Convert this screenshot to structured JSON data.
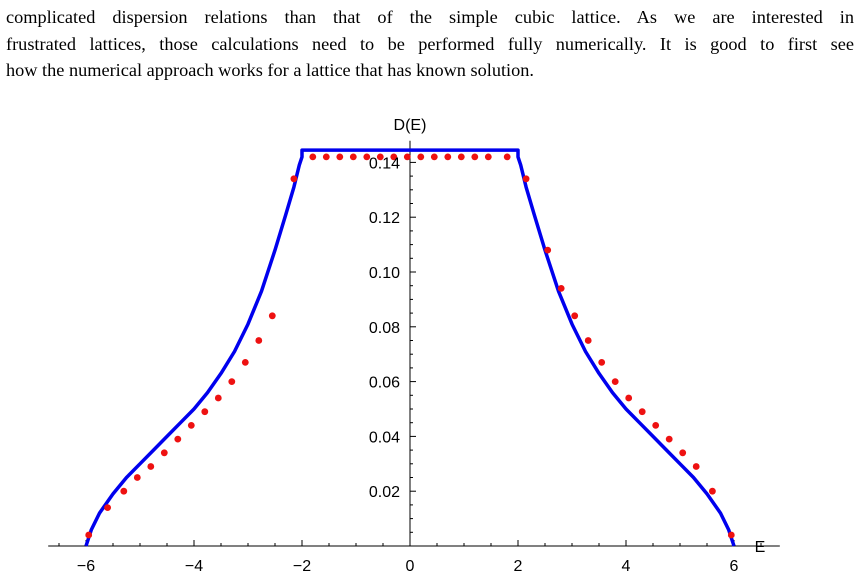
{
  "text": {
    "lines": [
      "complicated dispersion relations than that of the simple cubic lattice.  As we are interested in",
      "frustrated lattices, those calculations need to be performed fully numerically. It is good to first see",
      "how the numerical approach works for a lattice that has known solution."
    ]
  },
  "chart_data": {
    "type": "line",
    "xlabel": "E",
    "ylabel": "D(E)",
    "xlim": [
      -6.7,
      6.7
    ],
    "ylim": [
      0,
      0.145
    ],
    "x_ticks": [
      -6,
      -4,
      -2,
      0,
      2,
      4,
      6
    ],
    "x_tick_labels": [
      "−6",
      "−4",
      "−2",
      "0",
      "2",
      "4",
      "6"
    ],
    "y_ticks": [
      0.02,
      0.04,
      0.06,
      0.08,
      0.1,
      0.12,
      0.14
    ],
    "y_tick_labels": [
      "0.02",
      "0.04",
      "0.06",
      "0.08",
      "0.10",
      "0.12",
      "0.14"
    ],
    "series": [
      {
        "kind": "line",
        "color": "#0000ee",
        "x": [
          -6.0,
          -5.9,
          -5.75,
          -5.5,
          -5.25,
          -5.0,
          -4.75,
          -4.5,
          -4.25,
          -4.0,
          -3.75,
          -3.5,
          -3.25,
          -3.0,
          -2.75,
          -2.5,
          -2.3,
          -2.15,
          -2.05,
          -2.0,
          -2.0,
          2.0,
          2.0,
          2.05,
          2.15,
          2.3,
          2.5,
          2.75,
          3.0,
          3.25,
          3.5,
          3.75,
          4.0,
          4.25,
          4.5,
          4.75,
          5.0,
          5.25,
          5.5,
          5.75,
          5.9,
          6.0
        ],
        "y": [
          0.0,
          0.006,
          0.012,
          0.019,
          0.025,
          0.03,
          0.035,
          0.04,
          0.045,
          0.05,
          0.056,
          0.063,
          0.071,
          0.081,
          0.093,
          0.108,
          0.121,
          0.131,
          0.139,
          0.142,
          0.1445,
          0.1445,
          0.142,
          0.139,
          0.131,
          0.121,
          0.108,
          0.093,
          0.081,
          0.071,
          0.063,
          0.056,
          0.05,
          0.045,
          0.04,
          0.035,
          0.03,
          0.025,
          0.019,
          0.012,
          0.006,
          0.0
        ]
      },
      {
        "kind": "points",
        "color": "#ee1111",
        "x": [
          -5.95,
          -5.6,
          -5.3,
          -5.05,
          -4.8,
          -4.55,
          -4.3,
          -4.05,
          -3.8,
          -3.55,
          -3.3,
          -3.05,
          -2.8,
          -2.55,
          -2.15,
          -1.8,
          -1.55,
          -1.3,
          -1.05,
          -0.8,
          -0.55,
          -0.3,
          -0.05,
          0.2,
          0.45,
          0.7,
          0.95,
          1.2,
          1.45,
          1.8,
          2.15,
          2.55,
          2.8,
          3.05,
          3.3,
          3.55,
          3.8,
          4.05,
          4.3,
          4.55,
          4.8,
          5.05,
          5.3,
          5.6,
          5.95
        ],
        "y": [
          0.004,
          0.014,
          0.02,
          0.025,
          0.029,
          0.034,
          0.039,
          0.044,
          0.049,
          0.054,
          0.06,
          0.067,
          0.075,
          0.084,
          0.134,
          0.142,
          0.142,
          0.142,
          0.142,
          0.142,
          0.142,
          0.142,
          0.142,
          0.142,
          0.142,
          0.142,
          0.142,
          0.142,
          0.142,
          0.142,
          0.134,
          0.108,
          0.094,
          0.084,
          0.075,
          0.067,
          0.06,
          0.054,
          0.049,
          0.044,
          0.039,
          0.034,
          0.029,
          0.02,
          0.004
        ]
      }
    ]
  }
}
